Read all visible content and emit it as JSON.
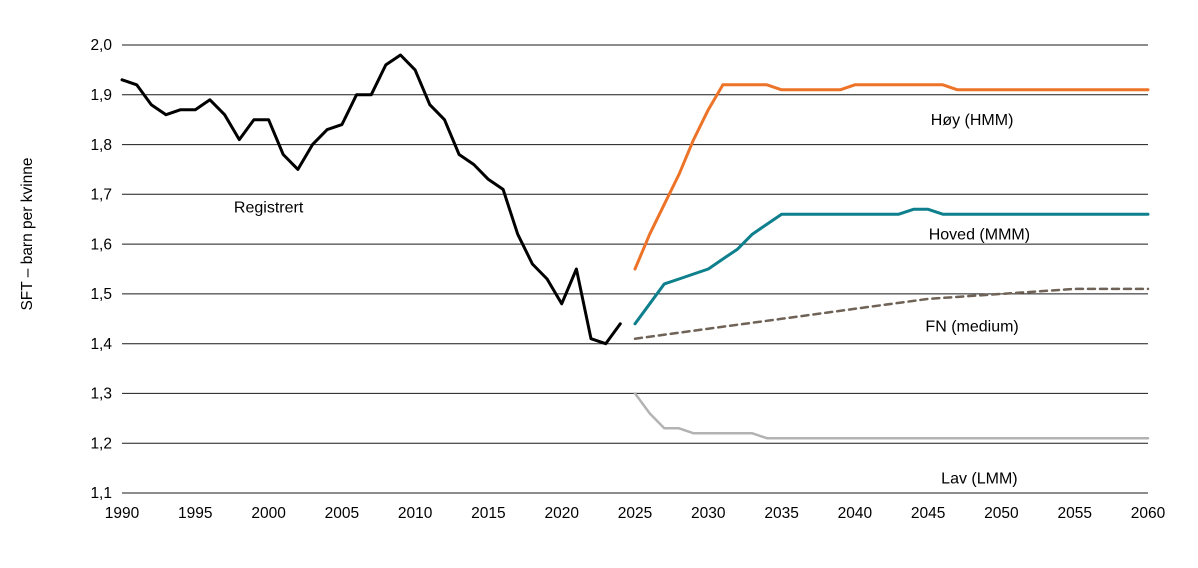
{
  "chart_data": {
    "type": "line",
    "title": "",
    "xlabel": "",
    "ylabel": "SFT – barn per kvinne",
    "xlim": [
      1990,
      2060
    ],
    "ylim": [
      1.1,
      2.0
    ],
    "grid": "horizontal",
    "legend": "inline-labels",
    "xticks": [
      1990,
      1995,
      2000,
      2005,
      2010,
      2015,
      2020,
      2025,
      2030,
      2035,
      2040,
      2045,
      2050,
      2055,
      2060
    ],
    "yticks": [
      {
        "value": 2.0,
        "label": "2,0"
      },
      {
        "value": 1.9,
        "label": "1,9"
      },
      {
        "value": 1.8,
        "label": "1,8"
      },
      {
        "value": 1.7,
        "label": "1,7"
      },
      {
        "value": 1.6,
        "label": "1,6"
      },
      {
        "value": 1.5,
        "label": "1,5"
      },
      {
        "value": 1.4,
        "label": "1,4"
      },
      {
        "value": 1.3,
        "label": "1,3"
      },
      {
        "value": 1.2,
        "label": "1,2"
      },
      {
        "value": 1.1,
        "label": "1,1"
      }
    ],
    "series": [
      {
        "id": "registrert",
        "name": "Registrert",
        "color": "#000000",
        "width": 3,
        "dash": null,
        "x": [
          1990,
          1991,
          1992,
          1993,
          1994,
          1995,
          1996,
          1997,
          1998,
          1999,
          2000,
          2001,
          2002,
          2003,
          2004,
          2005,
          2006,
          2007,
          2008,
          2009,
          2010,
          2011,
          2012,
          2013,
          2014,
          2015,
          2016,
          2017,
          2018,
          2019,
          2020,
          2021,
          2022,
          2023,
          2024
        ],
        "values": [
          1.93,
          1.92,
          1.88,
          1.86,
          1.87,
          1.87,
          1.89,
          1.86,
          1.81,
          1.85,
          1.85,
          1.78,
          1.75,
          1.8,
          1.83,
          1.84,
          1.9,
          1.9,
          1.96,
          1.98,
          1.95,
          1.88,
          1.85,
          1.78,
          1.76,
          1.73,
          1.71,
          1.62,
          1.56,
          1.53,
          1.48,
          1.55,
          1.41,
          1.4,
          1.44
        ]
      },
      {
        "id": "hoy-hmm",
        "name": "Høy (HMM)",
        "color": "#ed7328",
        "width": 3,
        "dash": null,
        "x": [
          2025,
          2026,
          2027,
          2028,
          2029,
          2030,
          2031,
          2032,
          2033,
          2034,
          2035,
          2036,
          2037,
          2038,
          2039,
          2040,
          2041,
          2042,
          2043,
          2044,
          2045,
          2046,
          2047,
          2048,
          2049,
          2050,
          2051,
          2052,
          2053,
          2054,
          2055,
          2056,
          2057,
          2058,
          2059,
          2060
        ],
        "values": [
          1.55,
          1.62,
          1.68,
          1.74,
          1.81,
          1.87,
          1.92,
          1.92,
          1.92,
          1.92,
          1.91,
          1.91,
          1.91,
          1.91,
          1.91,
          1.92,
          1.92,
          1.92,
          1.92,
          1.92,
          1.92,
          1.92,
          1.91,
          1.91,
          1.91,
          1.91,
          1.91,
          1.91,
          1.91,
          1.91,
          1.91,
          1.91,
          1.91,
          1.91,
          1.91,
          1.91
        ]
      },
      {
        "id": "hoved-mmm",
        "name": "Hoved (MMM)",
        "color": "#0e7f8c",
        "width": 3,
        "dash": null,
        "x": [
          2025,
          2026,
          2027,
          2028,
          2029,
          2030,
          2031,
          2032,
          2033,
          2034,
          2035,
          2036,
          2037,
          2038,
          2039,
          2040,
          2041,
          2042,
          2043,
          2044,
          2045,
          2046,
          2047,
          2048,
          2049,
          2050,
          2051,
          2052,
          2053,
          2054,
          2055,
          2056,
          2057,
          2058,
          2059,
          2060
        ],
        "values": [
          1.44,
          1.48,
          1.52,
          1.53,
          1.54,
          1.55,
          1.57,
          1.59,
          1.62,
          1.64,
          1.66,
          1.66,
          1.66,
          1.66,
          1.66,
          1.66,
          1.66,
          1.66,
          1.66,
          1.67,
          1.67,
          1.66,
          1.66,
          1.66,
          1.66,
          1.66,
          1.66,
          1.66,
          1.66,
          1.66,
          1.66,
          1.66,
          1.66,
          1.66,
          1.66,
          1.66
        ]
      },
      {
        "id": "fn-medium",
        "name": "FN (medium)",
        "color": "#6f6256",
        "width": 2.5,
        "dash": [
          7,
          5
        ],
        "x": [
          2025,
          2030,
          2035,
          2040,
          2045,
          2050,
          2055,
          2060
        ],
        "values": [
          1.41,
          1.43,
          1.45,
          1.47,
          1.49,
          1.5,
          1.51,
          1.51
        ]
      },
      {
        "id": "lav-lmm",
        "name": "Lav (LMM)",
        "color": "#b3b3b3",
        "width": 2.5,
        "dash": null,
        "x": [
          2025,
          2026,
          2027,
          2028,
          2029,
          2030,
          2031,
          2032,
          2033,
          2034,
          2035,
          2036,
          2037,
          2038,
          2039,
          2040,
          2041,
          2042,
          2043,
          2044,
          2045,
          2046,
          2047,
          2048,
          2049,
          2050,
          2051,
          2052,
          2053,
          2054,
          2055,
          2056,
          2057,
          2058,
          2059,
          2060
        ],
        "values": [
          1.3,
          1.26,
          1.23,
          1.23,
          1.22,
          1.22,
          1.22,
          1.22,
          1.22,
          1.21,
          1.21,
          1.21,
          1.21,
          1.21,
          1.21,
          1.21,
          1.21,
          1.21,
          1.21,
          1.21,
          1.21,
          1.21,
          1.21,
          1.21,
          1.21,
          1.21,
          1.21,
          1.21,
          1.21,
          1.21,
          1.21,
          1.21,
          1.21,
          1.21,
          1.21,
          1.21
        ]
      }
    ],
    "annotations": [
      {
        "for": "registrert",
        "text": "Registrert",
        "x": 2000,
        "y": 1.675
      },
      {
        "for": "hoy-hmm",
        "text": "Høy (HMM)",
        "x": 2048,
        "y": 1.85
      },
      {
        "for": "hoved-mmm",
        "text": "Hoved (MMM)",
        "x": 2048.5,
        "y": 1.62
      },
      {
        "for": "fn-medium",
        "text": "FN (medium)",
        "x": 2048,
        "y": 1.435
      },
      {
        "for": "lav-lmm",
        "text": "Lav (LMM)",
        "x": 2048.5,
        "y": 1.13
      }
    ]
  }
}
